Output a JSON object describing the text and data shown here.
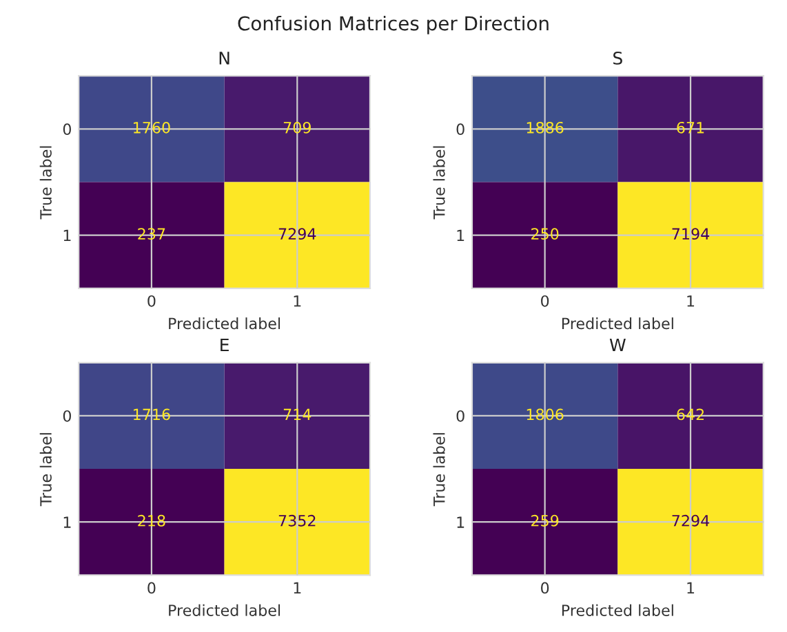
{
  "chart_data": [
    {
      "type": "heatmap",
      "title": "N",
      "xlabel": "Predicted label",
      "ylabel": "True label",
      "annotations": [
        "Confusion Matrices per Direction"
      ],
      "categories": [
        "0",
        "1"
      ],
      "y_categories": [
        "0",
        "1"
      ],
      "cells": [
        [
          1760,
          709
        ],
        [
          237,
          7294
        ]
      ],
      "data_labels": true,
      "grid": true
    },
    {
      "type": "heatmap",
      "title": "S",
      "xlabel": "Predicted label",
      "ylabel": "True label",
      "categories": [
        "0",
        "1"
      ],
      "y_categories": [
        "0",
        "1"
      ],
      "cells": [
        [
          1886,
          671
        ],
        [
          250,
          7194
        ]
      ],
      "data_labels": true,
      "grid": true
    },
    {
      "type": "heatmap",
      "title": "E",
      "xlabel": "Predicted label",
      "ylabel": "True label",
      "categories": [
        "0",
        "1"
      ],
      "y_categories": [
        "0",
        "1"
      ],
      "cells": [
        [
          1716,
          714
        ],
        [
          218,
          7352
        ]
      ],
      "data_labels": true,
      "grid": true
    },
    {
      "type": "heatmap",
      "title": "W",
      "xlabel": "Predicted label",
      "ylabel": "True label",
      "categories": [
        "0",
        "1"
      ],
      "y_categories": [
        "0",
        "1"
      ],
      "cells": [
        [
          1806,
          642
        ],
        [
          259,
          7294
        ]
      ],
      "data_labels": true,
      "grid": true
    }
  ]
}
